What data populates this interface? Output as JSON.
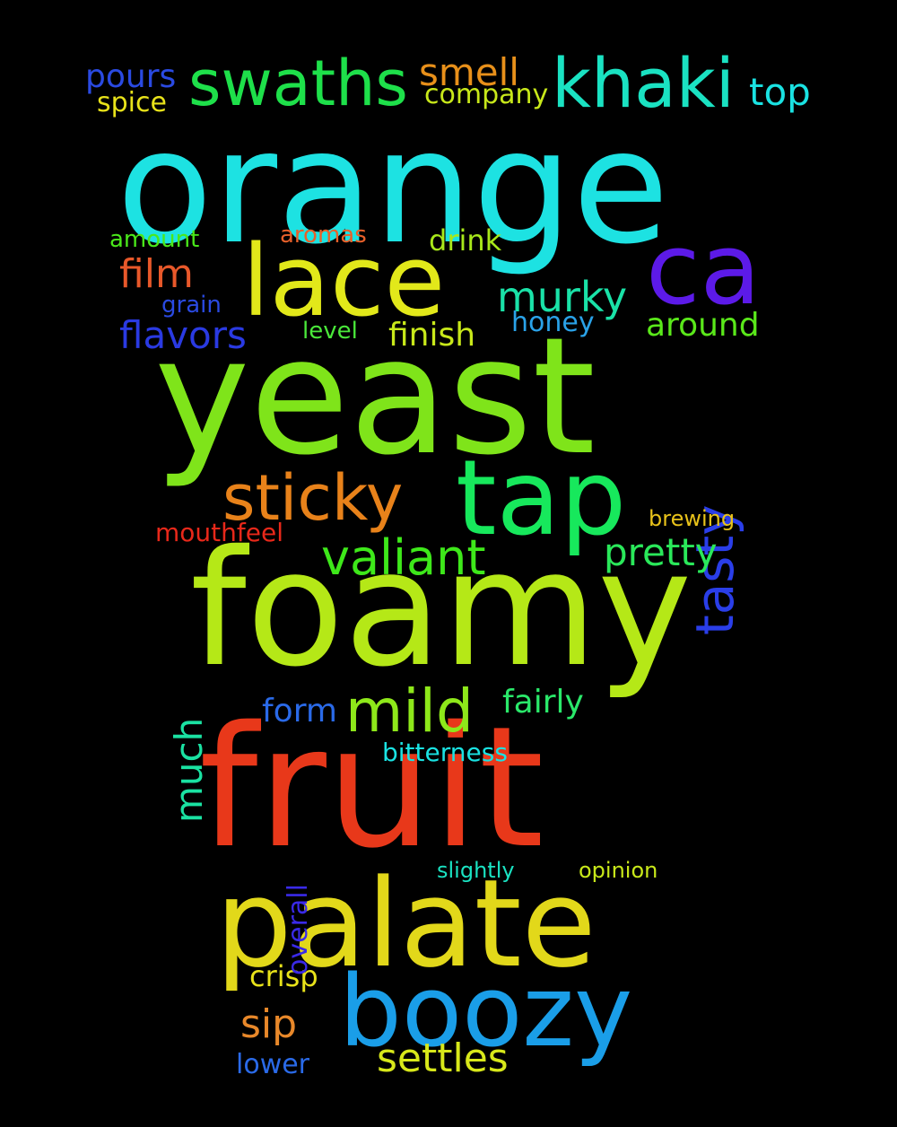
{
  "words": [
    {
      "id": "orange",
      "text": "orange",
      "color": "#1de2e2"
    },
    {
      "id": "yeast",
      "text": "yeast",
      "color": "#7fe41a"
    },
    {
      "id": "foamy",
      "text": "foamy",
      "color": "#b5e817"
    },
    {
      "id": "fruit",
      "text": "fruit",
      "color": "#e8381a"
    },
    {
      "id": "palate",
      "text": "palate",
      "color": "#e2d81a"
    },
    {
      "id": "boozy",
      "text": "boozy",
      "color": "#1a9ee8"
    },
    {
      "id": "tap",
      "text": "tap",
      "color": "#17e85c"
    },
    {
      "id": "lace",
      "text": "lace",
      "color": "#e2e81a"
    },
    {
      "id": "ca",
      "text": "ca",
      "color": "#5c1ae8"
    },
    {
      "id": "swaths",
      "text": "swaths",
      "color": "#1ee04a"
    },
    {
      "id": "khaki",
      "text": "khaki",
      "color": "#1ae2c2"
    },
    {
      "id": "sticky",
      "text": "sticky",
      "color": "#e8821a"
    },
    {
      "id": "mild",
      "text": "mild",
      "color": "#8ee81a"
    },
    {
      "id": "valiant",
      "text": "valiant",
      "color": "#3ee81a"
    },
    {
      "id": "tasty",
      "text": "tasty",
      "color": "#2a3ee8"
    },
    {
      "id": "murky",
      "text": "murky",
      "color": "#1ae2a8"
    },
    {
      "id": "film",
      "text": "film",
      "color": "#e8582a"
    },
    {
      "id": "flavors",
      "text": "flavors",
      "color": "#2a3ae2"
    },
    {
      "id": "smell",
      "text": "smell",
      "color": "#e8901a"
    },
    {
      "id": "top",
      "text": "top",
      "color": "#1ae2e2"
    },
    {
      "id": "pours",
      "text": "pours",
      "color": "#2a4ae2"
    },
    {
      "id": "spice",
      "text": "spice",
      "color": "#e8e21a"
    },
    {
      "id": "company",
      "text": "company",
      "color": "#c8e81a"
    },
    {
      "id": "pretty",
      "text": "pretty",
      "color": "#2ae85a"
    },
    {
      "id": "around",
      "text": "around",
      "color": "#5ae81a"
    },
    {
      "id": "much",
      "text": "much",
      "color": "#1ae2a2"
    },
    {
      "id": "sip",
      "text": "sip",
      "color": "#e8882a"
    },
    {
      "id": "settles",
      "text": "settles",
      "color": "#d8e81a"
    },
    {
      "id": "fairly",
      "text": "fairly",
      "color": "#2ae86a"
    },
    {
      "id": "form",
      "text": "form",
      "color": "#2a6ae8"
    },
    {
      "id": "finish",
      "text": "finish",
      "color": "#c8e81a"
    },
    {
      "id": "drink",
      "text": "drink",
      "color": "#a8e81a"
    },
    {
      "id": "honey",
      "text": "honey",
      "color": "#2aa2e8"
    },
    {
      "id": "crisp",
      "text": "crisp",
      "color": "#e8e21a"
    },
    {
      "id": "overall",
      "text": "overall",
      "color": "#3a2ae8"
    },
    {
      "id": "bitterness",
      "text": "bitterness",
      "color": "#1ae2e2"
    },
    {
      "id": "mouthfeel",
      "text": "mouthfeel",
      "color": "#e8281a"
    },
    {
      "id": "brewing",
      "text": "brewing",
      "color": "#e8c21a"
    },
    {
      "id": "amount",
      "text": "amount",
      "color": "#4ae81a"
    },
    {
      "id": "aromas",
      "text": "aromas",
      "color": "#e8602a"
    },
    {
      "id": "grain",
      "text": "grain",
      "color": "#2a4ae2"
    },
    {
      "id": "level",
      "text": "level",
      "color": "#4ae83a"
    },
    {
      "id": "slightly",
      "text": "slightly",
      "color": "#1ae2c2"
    },
    {
      "id": "opinion",
      "text": "opinion",
      "color": "#c8e81a"
    },
    {
      "id": "lower",
      "text": "lower",
      "color": "#2a6ae8"
    }
  ]
}
